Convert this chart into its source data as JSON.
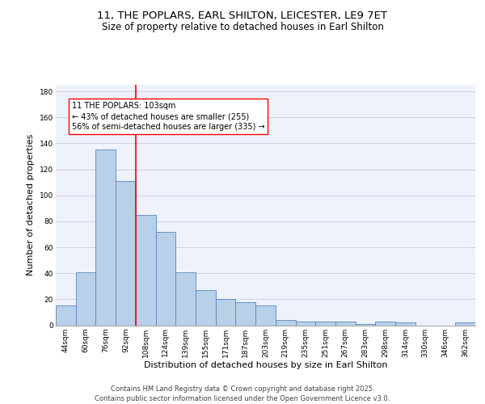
{
  "title_line1": "11, THE POPLARS, EARL SHILTON, LEICESTER, LE9 7ET",
  "title_line2": "Size of property relative to detached houses in Earl Shilton",
  "xlabel": "Distribution of detached houses by size in Earl Shilton",
  "ylabel": "Number of detached properties",
  "categories": [
    "44sqm",
    "60sqm",
    "76sqm",
    "92sqm",
    "108sqm",
    "124sqm",
    "139sqm",
    "155sqm",
    "171sqm",
    "187sqm",
    "203sqm",
    "219sqm",
    "235sqm",
    "251sqm",
    "267sqm",
    "283sqm",
    "298sqm",
    "314sqm",
    "330sqm",
    "346sqm",
    "362sqm"
  ],
  "values": [
    15,
    41,
    135,
    111,
    85,
    72,
    41,
    27,
    20,
    18,
    15,
    4,
    3,
    3,
    3,
    1,
    3,
    2,
    0,
    0,
    2
  ],
  "bar_color": "#b8d0e8",
  "bar_edge_color": "#5588bb",
  "background_color": "#eef2fb",
  "grid_color": "#ccccdd",
  "vline_index": 4,
  "vline_color": "red",
  "annotation_text": "11 THE POPLARS: 103sqm\n← 43% of detached houses are smaller (255)\n56% of semi-detached houses are larger (335) →",
  "annotation_box_color": "red",
  "ylim": [
    0,
    185
  ],
  "yticks": [
    0,
    20,
    40,
    60,
    80,
    100,
    120,
    140,
    160,
    180
  ],
  "footer_text": "Contains HM Land Registry data © Crown copyright and database right 2025.\nContains public sector information licensed under the Open Government Licence v3.0.",
  "title_fontsize": 9.5,
  "subtitle_fontsize": 8.5,
  "axis_label_fontsize": 8,
  "tick_fontsize": 6.5,
  "footer_fontsize": 6,
  "annotation_fontsize": 7
}
